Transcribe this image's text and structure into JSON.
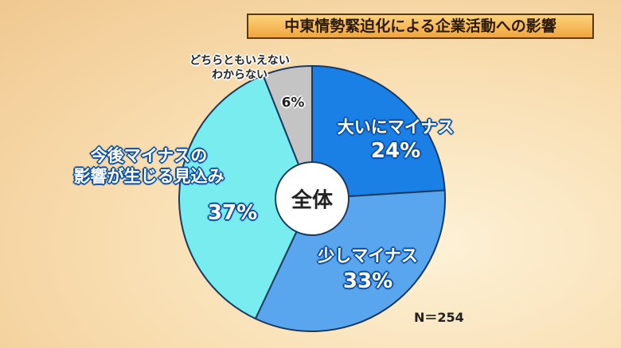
{
  "chart_data": {
    "type": "pie",
    "title": "中東情勢緊迫化による企業活動への影響",
    "center_label": "全体",
    "note": "N＝254",
    "categories": [
      "大いにマイナス",
      "少しマイナス",
      "今後マイナスの\n影響が生じる見込み",
      "どちらともいえない\nわからない"
    ],
    "values": [
      24,
      33,
      37,
      6
    ],
    "value_labels": [
      "24%",
      "33%",
      "37%",
      "6%"
    ],
    "colors": [
      "#1a80e6",
      "#5aa6ee",
      "#78ecee",
      "#c4c4c4"
    ]
  }
}
